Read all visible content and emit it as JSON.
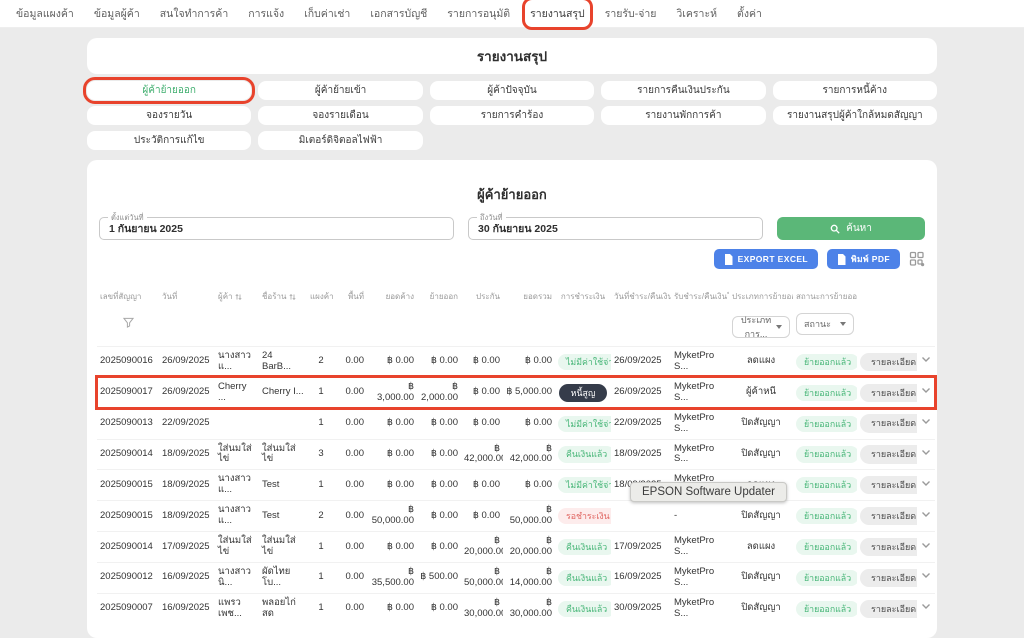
{
  "colors": {
    "annotation_red": "#e8432c",
    "accent_green": "#5bb778",
    "accent_blue": "#4d82e8",
    "badge_mint_bg": "#e9f7ef",
    "badge_mint_text": "#45b576",
    "badge_pink_bg": "#fdecec",
    "badge_pink_text": "#e06561",
    "badge_dark_bg": "#353c4a"
  },
  "nav": {
    "items": [
      "ข้อมูลแผงค้า",
      "ข้อมูลผู้ค้า",
      "สนใจทำการค้า",
      "การแจ้ง",
      "เก็บค่าเช่า",
      "เอกสารบัญชี",
      "รายการอนุมัติ",
      "รายงานสรุป",
      "รายรับ-จ่าย",
      "วิเคราะห์",
      "ตั้งค่า"
    ],
    "active_index": 7
  },
  "page_title": "รายงานสรุป",
  "tabs": [
    {
      "label": "ผู้ค้าย้ายออก",
      "active": true
    },
    {
      "label": "ผู้ค้าย้ายเข้า",
      "active": false
    },
    {
      "label": "ผู้ค้าปัจจุบัน",
      "active": false
    },
    {
      "label": "รายการคืนเงินประกัน",
      "active": false
    },
    {
      "label": "รายการหนี้ค้าง",
      "active": false
    },
    {
      "label": "จองรายวัน",
      "active": false
    },
    {
      "label": "จองรายเดือน",
      "active": false
    },
    {
      "label": "รายการคำร้อง",
      "active": false
    },
    {
      "label": "รายงานพักการค้า",
      "active": false
    },
    {
      "label": "รายงานสรุปผู้ค้าใกล้หมดสัญญา",
      "active": false
    },
    {
      "label": "ประวัติการแก้ไข",
      "active": false
    },
    {
      "label": "มิเตอร์ดิจิตอลไฟฟ้า",
      "active": false
    }
  ],
  "report": {
    "heading": "ผู้ค้าย้ายออก",
    "date_from": {
      "label": "ตั้งแต่วันที่",
      "value": "1 กันยายน 2025"
    },
    "date_to": {
      "label": "ถึงวันที่",
      "value": "30 กันยายน 2025"
    },
    "search_label": "ค้นหา",
    "export_excel_label": "EXPORT EXCEL",
    "print_pdf_label": "พิมพ์ PDF"
  },
  "table": {
    "columns": [
      "เลขที่สัญญา",
      "วันที่",
      "ผู้ค้า",
      "ชื่อร้าน",
      "แผงค้า",
      "พื้นที่",
      "ยอดค้าง",
      "ย้ายออก",
      "ประกัน",
      "ยอดรวม",
      "การชำระเงิน",
      "วันที่ชำระ/คืนเงิน",
      "รับชำระ/คืนเงินโดย",
      "ประเภทการย้ายออก",
      "สถานะการย้ายออก",
      "",
      ""
    ],
    "filters": {
      "type_select": "ประเภทการ...",
      "status_select": "สถานะ"
    },
    "detail_label": "รายละเอียด",
    "rows": [
      {
        "contract": "2025090016",
        "date": "26/09/2025",
        "trader": "นางสาว แ...",
        "shop": "24 BarB...",
        "stalls": "2",
        "area": "0.00",
        "outstanding": "฿ 0.00",
        "moveout": "฿ 0.00",
        "insurance": "฿ 0.00",
        "total": "฿ 0.00",
        "payment": {
          "text": "ไม่มีค่าใช้จ่าย",
          "style": "mint"
        },
        "pay_date": "26/09/2025",
        "pay_by": "MyketPro S...",
        "type": "ลดแผง",
        "status": "ย้ายออกแล้ว",
        "highlighted": false
      },
      {
        "contract": "2025090017",
        "date": "26/09/2025",
        "trader": "Cherry ...",
        "shop": "Cherry I...",
        "stalls": "1",
        "area": "0.00",
        "outstanding": "฿ 3,000.00",
        "moveout": "฿ 2,000.00",
        "insurance": "฿ 0.00",
        "total": "฿ 5,000.00",
        "payment": {
          "text": "หนี้สูญ",
          "style": "dark"
        },
        "pay_date": "26/09/2025",
        "pay_by": "MyketPro S...",
        "type": "ผู้ค้าหนี",
        "status": "ย้ายออกแล้ว",
        "highlighted": true
      },
      {
        "contract": "2025090013",
        "date": "22/09/2025",
        "trader": "",
        "shop": "",
        "stalls": "1",
        "area": "0.00",
        "outstanding": "฿ 0.00",
        "moveout": "฿ 0.00",
        "insurance": "฿ 0.00",
        "total": "฿ 0.00",
        "payment": {
          "text": "ไม่มีค่าใช้จ่าย",
          "style": "mint"
        },
        "pay_date": "22/09/2025",
        "pay_by": "MyketPro S...",
        "type": "ปิดสัญญา",
        "status": "ย้ายออกแล้ว",
        "highlighted": false
      },
      {
        "contract": "2025090014",
        "date": "18/09/2025",
        "trader": "ใส่นมใส่ไข่",
        "shop": "ใส่นมใส่ไข่",
        "stalls": "3",
        "area": "0.00",
        "outstanding": "฿ 0.00",
        "moveout": "฿ 0.00",
        "insurance": "฿ 42,000.00",
        "total": "฿ 42,000.00",
        "payment": {
          "text": "คืนเงินแล้ว",
          "style": "mint"
        },
        "pay_date": "18/09/2025",
        "pay_by": "MyketPro S...",
        "type": "ปิดสัญญา",
        "status": "ย้ายออกแล้ว",
        "highlighted": false
      },
      {
        "contract": "2025090015",
        "date": "18/09/2025",
        "trader": "นางสาว แ...",
        "shop": "Test",
        "stalls": "1",
        "area": "0.00",
        "outstanding": "฿ 0.00",
        "moveout": "฿ 0.00",
        "insurance": "฿ 0.00",
        "total": "฿ 0.00",
        "payment": {
          "text": "ไม่มีค่าใช้จ่าย",
          "style": "mint"
        },
        "pay_date": "18/09/2025",
        "pay_by": "MyketPro S...",
        "type": "ลดแผง",
        "status": "ย้ายออกแล้ว",
        "highlighted": false
      },
      {
        "contract": "2025090015",
        "date": "18/09/2025",
        "trader": "นางสาว แ...",
        "shop": "Test",
        "stalls": "2",
        "area": "0.00",
        "outstanding": "฿ 50,000.00",
        "moveout": "฿ 0.00",
        "insurance": "฿ 0.00",
        "total": "฿ 50,000.00",
        "payment": {
          "text": "รอชำระเงิน",
          "style": "pink"
        },
        "pay_date": "",
        "pay_by": "-",
        "type": "ปิดสัญญา",
        "status": "ย้ายออกแล้ว",
        "highlighted": false
      },
      {
        "contract": "2025090014",
        "date": "17/09/2025",
        "trader": "ใส่นมใส่ไข่",
        "shop": "ใส่นมใส่ไข่",
        "stalls": "1",
        "area": "0.00",
        "outstanding": "฿ 0.00",
        "moveout": "฿ 0.00",
        "insurance": "฿ 20,000.00",
        "total": "฿ 20,000.00",
        "payment": {
          "text": "คืนเงินแล้ว",
          "style": "mint"
        },
        "pay_date": "17/09/2025",
        "pay_by": "MyketPro S...",
        "type": "ลดแผง",
        "status": "ย้ายออกแล้ว",
        "highlighted": false
      },
      {
        "contract": "2025090012",
        "date": "16/09/2025",
        "trader": "นางสาว นิ...",
        "shop": "ผัดไทยโบ...",
        "stalls": "1",
        "area": "0.00",
        "outstanding": "฿ 35,500.00",
        "moveout": "฿ 500.00",
        "insurance": "฿ 50,000.00",
        "total": "฿ 14,000.00",
        "payment": {
          "text": "คืนเงินแล้ว",
          "style": "mint"
        },
        "pay_date": "16/09/2025",
        "pay_by": "MyketPro S...",
        "type": "ปิดสัญญา",
        "status": "ย้ายออกแล้ว",
        "highlighted": false
      },
      {
        "contract": "2025090007",
        "date": "16/09/2025",
        "trader": "แพรวเพช...",
        "shop": "พลอยไก่สด",
        "stalls": "1",
        "area": "0.00",
        "outstanding": "฿ 0.00",
        "moveout": "฿ 0.00",
        "insurance": "฿ 30,000.00",
        "total": "฿ 30,000.00",
        "payment": {
          "text": "คืนเงินแล้ว",
          "style": "mint"
        },
        "pay_date": "30/09/2025",
        "pay_by": "MyketPro S...",
        "type": "ปิดสัญญา",
        "status": "ย้ายออกแล้ว",
        "highlighted": false
      }
    ]
  },
  "tooltip": {
    "text": "EPSON Software Updater"
  }
}
